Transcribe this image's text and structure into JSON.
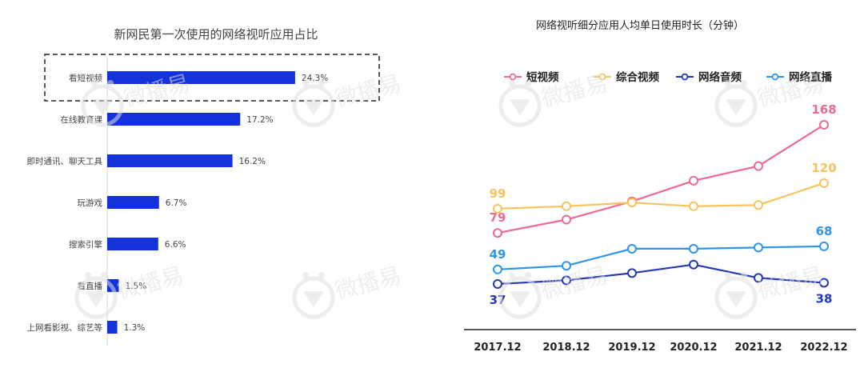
{
  "chart_data": [
    {
      "type": "bar",
      "orientation": "horizontal",
      "title": "新网民第一次使用的网络视听应用占比",
      "categories": [
        "看短视频",
        "在线教育课",
        "即时通讯、聊天工具",
        "玩游戏",
        "搜索引擎",
        "看直播",
        "上网看影视、综艺等"
      ],
      "values": [
        24.3,
        17.2,
        16.2,
        6.7,
        6.6,
        1.5,
        1.3
      ],
      "value_labels": [
        "24.3%",
        "17.2%",
        "16.2%",
        "6.7%",
        "6.6%",
        "1.5%",
        "1.3%"
      ],
      "highlighted_category": "看短视频",
      "bar_color": "#1432d9",
      "xlim": [
        0,
        30
      ]
    },
    {
      "type": "line",
      "title": "网络视听细分应用人均单日使用时长（分钟）",
      "x": [
        "2017.12",
        "2018.12",
        "2019.12",
        "2020.12",
        "2021.12",
        "2022.12"
      ],
      "ylim": [
        20,
        180
      ],
      "legend_position": "top",
      "series": [
        {
          "name": "短视频",
          "color": "#ef6a8f",
          "values": [
            79,
            90,
            105,
            122,
            134,
            168
          ],
          "labels": {
            "0": "79",
            "5": "168"
          }
        },
        {
          "name": "综合视频",
          "color": "#f6c35f",
          "values": [
            99,
            101,
            104,
            101,
            102,
            120
          ],
          "labels": {
            "0": "99",
            "5": "120"
          }
        },
        {
          "name": "网络音频",
          "color": "#2439b8",
          "values": [
            37,
            40,
            46,
            53,
            42,
            38
          ],
          "labels": {
            "0": "37",
            "5": "38"
          }
        },
        {
          "name": "网络直播",
          "color": "#2f95e6",
          "values": [
            49,
            52,
            66,
            66,
            67,
            68
          ],
          "labels": {
            "0": "49",
            "5": "68"
          }
        }
      ]
    }
  ],
  "watermark": {
    "text": "微播易",
    "icon": "weiboyi-logo-icon",
    "color": "#e0e0e0"
  }
}
